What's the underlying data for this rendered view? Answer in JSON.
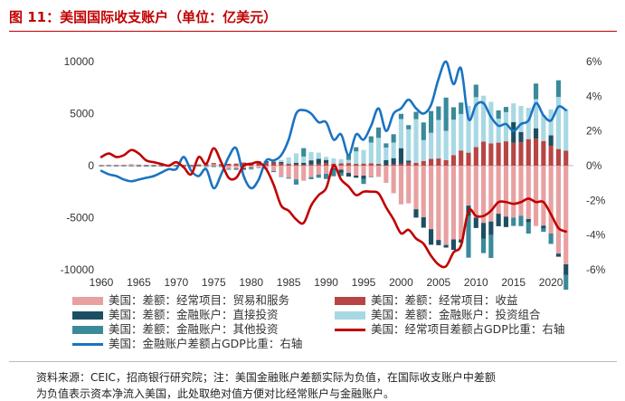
{
  "title": "图 11：美国国际收支账户（单位：亿美元）",
  "footnote": "资料来源：CEIC，招商银行研究院；注：美国金融账户差额实际为负值，在国际收支账户中差额",
  "footnote_cont": "为负值表示资本净流入美国，此处取绝对值方便对比经常账户与金融账户。",
  "colors": {
    "title": "#c00000",
    "trade": "#e8a0a0",
    "income": "#b84545",
    "fdi": "#1d4f63",
    "portfolio": "#a8d8e4",
    "other": "#3a8a9a",
    "fa_line": "#1a73c1",
    "ca_line": "#c00000"
  },
  "chart_data": {
    "type": "bar",
    "title": "美国国际收支账户（单位：亿美元）",
    "xlabel": "",
    "ylabel": "亿美元",
    "y2label": "%",
    "ylim": [
      -10000,
      10000
    ],
    "y2lim": [
      -6,
      6
    ],
    "xlim": [
      1960,
      2023
    ],
    "x_ticks": [
      1960,
      1965,
      1970,
      1975,
      1980,
      1985,
      1990,
      1995,
      2000,
      2005,
      2010,
      2015,
      2020
    ],
    "y_ticks": [
      10000,
      5000,
      0,
      -5000,
      -10000
    ],
    "y_tick_labels": [
      "10000",
      "5000",
      "0",
      "-5000",
      "-10000"
    ],
    "y2_ticks": [
      6,
      4,
      2,
      0,
      -2,
      -4,
      -6
    ],
    "y2_tick_labels": [
      "6%",
      "4%",
      "2%",
      "0%",
      "-2%",
      "-4%",
      "-6%"
    ],
    "years": [
      1960,
      1961,
      1962,
      1963,
      1964,
      1965,
      1966,
      1967,
      1968,
      1969,
      1970,
      1971,
      1972,
      1973,
      1974,
      1975,
      1976,
      1977,
      1978,
      1979,
      1980,
      1981,
      1982,
      1983,
      1984,
      1985,
      1986,
      1987,
      1988,
      1989,
      1990,
      1991,
      1992,
      1993,
      1994,
      1995,
      1996,
      1997,
      1998,
      1999,
      2000,
      2001,
      2002,
      2003,
      2004,
      2005,
      2006,
      2007,
      2008,
      2009,
      2010,
      2011,
      2012,
      2013,
      2014,
      2015,
      2016,
      2017,
      2018,
      2019,
      2020,
      2021,
      2022
    ],
    "series": [
      {
        "name": "美国：差额：经常项目：贸易和服务",
        "type": "bar",
        "axis": "left",
        "values": [
          40,
          50,
          40,
          50,
          70,
          50,
          30,
          30,
          5,
          5,
          20,
          -15,
          -60,
          10,
          -40,
          120,
          -30,
          -280,
          -300,
          -240,
          -190,
          -160,
          -200,
          -520,
          -1020,
          -1150,
          -1320,
          -1450,
          -1100,
          -860,
          -780,
          -270,
          -390,
          -700,
          -960,
          -960,
          -1040,
          -1080,
          -1660,
          -2650,
          -3720,
          -3620,
          -4190,
          -4960,
          -6100,
          -7140,
          -7620,
          -7090,
          -7090,
          -3840,
          -4990,
          -5500,
          -5370,
          -4620,
          -4900,
          -4990,
          -4810,
          -5130,
          -5800,
          -5760,
          -6520,
          -8450,
          -9480
        ]
      },
      {
        "name": "美国：差额：经常项目：收益",
        "type": "bar",
        "axis": "left",
        "values": [
          30,
          30,
          40,
          40,
          50,
          50,
          50,
          50,
          60,
          60,
          60,
          80,
          80,
          110,
          140,
          130,
          150,
          180,
          200,
          300,
          300,
          320,
          280,
          280,
          210,
          150,
          130,
          80,
          110,
          150,
          250,
          200,
          220,
          250,
          170,
          200,
          220,
          120,
          40,
          120,
          180,
          290,
          270,
          450,
          650,
          690,
          540,
          1010,
          1460,
          1250,
          1780,
          2320,
          2130,
          2210,
          2340,
          2190,
          2240,
          2550,
          2590,
          2370,
          1910,
          1600,
          1440
        ]
      },
      {
        "name": "美国：差额：金融账户：直接投资",
        "type": "bar",
        "axis": "left",
        "values": [
          -20,
          -15,
          -20,
          -20,
          -20,
          -30,
          -30,
          -30,
          -30,
          -30,
          -30,
          -40,
          -30,
          -20,
          -30,
          -60,
          -40,
          -50,
          -50,
          -120,
          -100,
          100,
          150,
          100,
          150,
          50,
          150,
          200,
          400,
          500,
          300,
          -150,
          -300,
          -350,
          -200,
          -300,
          -50,
          50,
          500,
          600,
          1500,
          200,
          -800,
          -1000,
          -1500,
          -500,
          -250,
          -1000,
          -300,
          -1000,
          -1000,
          -1500,
          -1300,
          -1200,
          -1000,
          2000,
          1000,
          -300,
          1000,
          -300,
          1000,
          -300,
          -1000
        ]
      },
      {
        "name": "美国：差额：金融账户：投资组合",
        "type": "bar",
        "axis": "left",
        "values": [
          -10,
          -10,
          -10,
          -10,
          -10,
          -20,
          -20,
          -20,
          -20,
          -20,
          -20,
          -20,
          -20,
          -20,
          -20,
          -40,
          -30,
          -30,
          -30,
          -40,
          -40,
          -40,
          -60,
          50,
          200,
          600,
          900,
          600,
          800,
          600,
          300,
          500,
          400,
          300,
          1200,
          1300,
          2000,
          2500,
          1200,
          1500,
          2800,
          3000,
          4200,
          2000,
          2500,
          3700,
          2800,
          3400,
          3500,
          4500,
          4800,
          4400,
          4000,
          2300,
          2800,
          1800,
          2500,
          3000,
          2800,
          2500,
          2500,
          5000,
          4000
        ]
      },
      {
        "name": "美国：差额：金融账户：其他投资",
        "type": "bar",
        "axis": "left",
        "values": [
          -10,
          -10,
          -10,
          -10,
          -10,
          -20,
          -20,
          -20,
          -20,
          -20,
          -20,
          -20,
          -20,
          -20,
          -20,
          -30,
          -20,
          -20,
          -20,
          -40,
          -20,
          -20,
          -20,
          -100,
          -60,
          -100,
          -500,
          800,
          -200,
          -300,
          -500,
          -600,
          -300,
          500,
          400,
          -500,
          600,
          1000,
          400,
          800,
          500,
          400,
          700,
          1700,
          2100,
          1300,
          3200,
          1200,
          1100,
          -4000,
          1200,
          -1400,
          -2200,
          800,
          500,
          -800,
          -1000,
          -1100,
          1500,
          -300,
          -1000,
          1600,
          -2000
        ]
      },
      {
        "name": "美国：金融账户差额占GDP比重：右轴",
        "type": "line",
        "axis": "right",
        "values": [
          -0.3,
          -0.5,
          -0.6,
          -0.8,
          -0.9,
          -0.8,
          -0.7,
          -0.6,
          -0.4,
          -0.2,
          -0.2,
          0.5,
          -0.3,
          -0.6,
          -0.2,
          -1.3,
          -0.5,
          0.5,
          1.0,
          -0.6,
          -1.3,
          -0.8,
          0.3,
          0.3,
          0.6,
          1.5,
          3.0,
          3.2,
          3.0,
          2.5,
          2.5,
          1.5,
          1.8,
          0.6,
          1.8,
          1.5,
          2.3,
          3.3,
          2.0,
          3.0,
          3.3,
          3.8,
          3.3,
          3.0,
          3.5,
          5.0,
          6.0,
          4.7,
          5.6,
          2.7,
          3.5,
          3.6,
          2.8,
          2.3,
          2.4,
          2.0,
          2.4,
          2.6,
          3.6,
          2.9,
          2.6,
          3.4,
          3.2
        ]
      },
      {
        "name": "美国：经常项目差额占GDP比重：右轴",
        "type": "line",
        "axis": "right",
        "values": [
          0.5,
          0.7,
          0.5,
          0.6,
          0.9,
          0.7,
          0.3,
          0.2,
          0.1,
          0.0,
          0.2,
          -0.1,
          -0.5,
          0.5,
          0.1,
          1.0,
          0.2,
          -0.7,
          -0.7,
          0.0,
          0.1,
          0.2,
          -0.2,
          -1.1,
          -2.3,
          -2.6,
          -3.1,
          -3.3,
          -2.3,
          -1.7,
          -1.3,
          0.0,
          -0.8,
          -1.2,
          -1.7,
          -1.5,
          -1.5,
          -1.6,
          -2.4,
          -3.1,
          -3.9,
          -3.7,
          -4.2,
          -4.5,
          -5.2,
          -5.7,
          -5.8,
          -5.0,
          -4.6,
          -2.6,
          -2.9,
          -2.9,
          -2.6,
          -2.1,
          -2.1,
          -2.2,
          -2.1,
          -1.9,
          -2.1,
          -2.1,
          -2.8,
          -3.6,
          -3.8
        ]
      }
    ],
    "legend": [
      {
        "label": "美国：差额：经常项目：贸易和服务",
        "kind": "bar",
        "color": "#e8a0a0"
      },
      {
        "label": "美国：差额：经常项目：收益",
        "kind": "bar",
        "color": "#b84545"
      },
      {
        "label": "美国：差额：金融账户：直接投资",
        "kind": "bar",
        "color": "#1d4f63"
      },
      {
        "label": "美国：差额：金融账户：投资组合",
        "kind": "bar",
        "color": "#a8d8e4"
      },
      {
        "label": "美国：差额：金融账户：其他投资",
        "kind": "bar",
        "color": "#3a8a9a"
      },
      {
        "label": "美国：经常项目差额占GDP比重：右轴",
        "kind": "line",
        "color": "#c00000"
      },
      {
        "label": "美国：金融账户差额占GDP比重：右轴",
        "kind": "line",
        "color": "#1a73c1"
      }
    ]
  }
}
